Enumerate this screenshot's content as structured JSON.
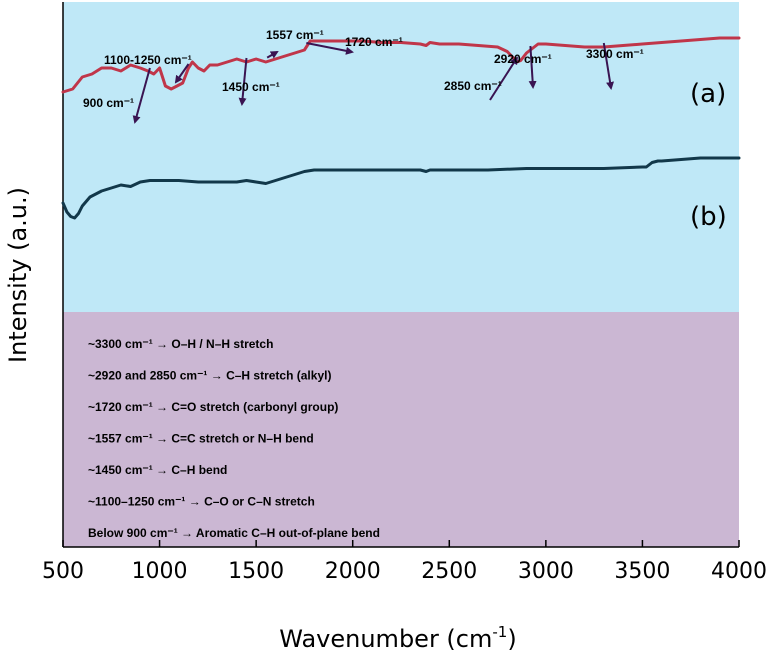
{
  "colors": {
    "top_panel": "#bfe8f7",
    "note_panel": "#cbb7d3",
    "series_a": "#c0364a",
    "series_b": "#12384a",
    "arrow": "#3a1452"
  },
  "chart_data": {
    "type": "line",
    "xlabel_base": "Wavenumber (cm",
    "xlabel_sup": "-1",
    "xlabel_close": ")",
    "ylabel": "Intensity (a.u.)",
    "xlim": [
      500,
      4000
    ],
    "ylim": [
      0,
      100
    ],
    "xticks": [
      500,
      1000,
      1500,
      2000,
      2500,
      3000,
      3500,
      4000
    ],
    "series": [
      {
        "name": "(a)",
        "x": [
          500,
          550,
          600,
          650,
          700,
          750,
          800,
          850,
          900,
          940,
          970,
          1000,
          1030,
          1060,
          1090,
          1120,
          1150,
          1170,
          1200,
          1230,
          1260,
          1300,
          1350,
          1400,
          1450,
          1500,
          1550,
          1600,
          1650,
          1700,
          1750,
          1780,
          1850,
          1950,
          2050,
          2150,
          2250,
          2350,
          2380,
          2400,
          2450,
          2550,
          2650,
          2750,
          2800,
          2830,
          2850,
          2870,
          2900,
          2930,
          2960,
          3000,
          3100,
          3200,
          3300,
          3400,
          3500,
          3600,
          3700,
          3800,
          3900,
          4000
        ],
        "values": [
          76,
          77,
          81,
          82,
          84,
          84,
          83,
          85,
          84,
          83,
          82,
          84,
          78,
          77,
          78,
          79,
          84,
          86,
          84,
          83,
          85,
          85,
          86,
          87,
          86,
          87,
          86,
          87,
          88,
          89,
          90,
          93,
          93,
          93,
          93,
          92.5,
          92.5,
          92,
          91.5,
          92.5,
          92,
          92,
          91.5,
          91,
          89.5,
          87.5,
          86,
          86.5,
          89,
          90.5,
          92,
          92,
          91.5,
          91,
          91,
          91.5,
          92,
          92.5,
          93,
          93.5,
          94,
          94
        ]
      },
      {
        "name": "(b)",
        "x": [
          500,
          520,
          540,
          560,
          580,
          600,
          640,
          700,
          750,
          800,
          850,
          900,
          950,
          1000,
          1100,
          1200,
          1300,
          1400,
          1450,
          1500,
          1550,
          1600,
          1650,
          1700,
          1750,
          1800,
          2000,
          2200,
          2350,
          2380,
          2400,
          2500,
          2700,
          2900,
          3100,
          3300,
          3500,
          3520,
          3550,
          3580,
          3600,
          3700,
          3800,
          3900,
          4000
        ],
        "values": [
          39,
          36,
          34.5,
          34,
          35.5,
          38,
          41,
          43,
          44,
          45,
          44.5,
          46,
          46.5,
          46.5,
          46.5,
          46,
          46,
          46,
          46.5,
          46,
          45.5,
          46.5,
          47.5,
          48.5,
          49.5,
          50,
          50,
          50,
          50,
          49.5,
          50,
          50,
          50,
          50.5,
          50.5,
          50.5,
          51,
          51,
          52.5,
          53,
          53,
          53.5,
          54,
          54,
          54
        ]
      }
    ],
    "series_labels": [
      "(a)",
      "(b)"
    ],
    "annotations": [
      {
        "label": "900 cm⁻¹",
        "wavenumber": 950
      },
      {
        "label": "1100-1250 cm⁻¹",
        "wavenumber": 1150
      },
      {
        "label": "1450 cm⁻¹",
        "wavenumber": 1450
      },
      {
        "label": "1557 cm⁻¹",
        "wavenumber": 1557
      },
      {
        "label": "1720 cm⁻¹",
        "wavenumber": 1760
      },
      {
        "label": "2850 cm⁻¹",
        "wavenumber": 2850
      },
      {
        "label": "2920 cm⁻¹",
        "wavenumber": 2920
      },
      {
        "label": "3300 cm⁻¹",
        "wavenumber": 3300
      }
    ],
    "notes": [
      "~3300 cm⁻¹ → O–H / N–H stretch",
      "~2920 and 2850 cm⁻¹ → C–H stretch (alkyl)",
      "~1720 cm⁻¹ → C=O stretch (carbonyl group)",
      "~1557 cm⁻¹ → C=C stretch or N–H bend",
      "~1450 cm⁻¹ → C–H bend",
      "~1100–1250 cm⁻¹ → C–O or C–N stretch",
      "Below 900 cm⁻¹ → Aromatic C–H out-of-plane bend"
    ]
  }
}
